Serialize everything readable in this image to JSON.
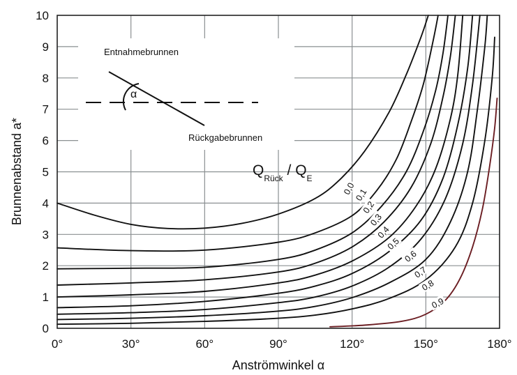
{
  "chart_data": {
    "type": "line",
    "xlabel": "Anströmwinkel α",
    "ylabel": "Brunnenabstand a*",
    "xlim": [
      0,
      180
    ],
    "ylim": [
      0,
      10
    ],
    "x_ticks": [
      "0°",
      "30°",
      "60°",
      "90°",
      "120°",
      "150°",
      "180°"
    ],
    "y_ticks": [
      "0",
      "1",
      "2",
      "3",
      "4",
      "5",
      "6",
      "7",
      "8",
      "9",
      "10"
    ],
    "grid": "major x and y",
    "legend_title": {
      "main": "Q",
      "sub1": "Rück",
      "sep": " / Q",
      "sub2": "E"
    },
    "inset": {
      "upper_label": "Entnahmebrunnen",
      "lower_label": "Rückgabebrunnen",
      "angle_symbol": "α"
    },
    "series": [
      {
        "name": "0,0",
        "points": [
          [
            0,
            4.0
          ],
          [
            15,
            3.62
          ],
          [
            30,
            3.32
          ],
          [
            45,
            3.19
          ],
          [
            60,
            3.2
          ],
          [
            75,
            3.35
          ],
          [
            90,
            3.65
          ],
          [
            105,
            4.15
          ],
          [
            115,
            4.75
          ],
          [
            125,
            5.65
          ],
          [
            135,
            6.9
          ],
          [
            142,
            8.1
          ],
          [
            148,
            9.3
          ],
          [
            151,
            10
          ]
        ]
      },
      {
        "name": "0,1",
        "points": [
          [
            0,
            2.57
          ],
          [
            30,
            2.48
          ],
          [
            60,
            2.5
          ],
          [
            90,
            2.75
          ],
          [
            105,
            3.05
          ],
          [
            120,
            3.6
          ],
          [
            130,
            4.4
          ],
          [
            138,
            5.4
          ],
          [
            144,
            6.6
          ],
          [
            149,
            7.8
          ],
          [
            153,
            9.2
          ],
          [
            155,
            10
          ]
        ]
      },
      {
        "name": "0,2",
        "points": [
          [
            0,
            1.9
          ],
          [
            30,
            1.92
          ],
          [
            60,
            1.95
          ],
          [
            90,
            2.2
          ],
          [
            105,
            2.5
          ],
          [
            120,
            3.05
          ],
          [
            132,
            3.9
          ],
          [
            142,
            5.0
          ],
          [
            149,
            6.3
          ],
          [
            154,
            7.6
          ],
          [
            157,
            8.8
          ],
          [
            159,
            10
          ]
        ]
      },
      {
        "name": "0,3",
        "points": [
          [
            0,
            1.38
          ],
          [
            30,
            1.45
          ],
          [
            60,
            1.55
          ],
          [
            90,
            1.8
          ],
          [
            105,
            2.08
          ],
          [
            120,
            2.6
          ],
          [
            133,
            3.4
          ],
          [
            144,
            4.5
          ],
          [
            152,
            5.9
          ],
          [
            157,
            7.4
          ],
          [
            160,
            8.7
          ],
          [
            162,
            10
          ]
        ]
      },
      {
        "name": "0,4",
        "points": [
          [
            0,
            1.0
          ],
          [
            30,
            1.07
          ],
          [
            60,
            1.18
          ],
          [
            90,
            1.45
          ],
          [
            105,
            1.7
          ],
          [
            120,
            2.15
          ],
          [
            135,
            2.9
          ],
          [
            146,
            3.9
          ],
          [
            154,
            5.1
          ],
          [
            160,
            6.7
          ],
          [
            163,
            8.1
          ],
          [
            165,
            10
          ]
        ]
      },
      {
        "name": "0,5",
        "points": [
          [
            0,
            0.66
          ],
          [
            30,
            0.72
          ],
          [
            60,
            0.86
          ],
          [
            90,
            1.12
          ],
          [
            105,
            1.35
          ],
          [
            120,
            1.75
          ],
          [
            135,
            2.45
          ],
          [
            148,
            3.45
          ],
          [
            157,
            4.8
          ],
          [
            163,
            6.5
          ],
          [
            167,
            8.3
          ],
          [
            169,
            10
          ]
        ]
      },
      {
        "name": "0,6",
        "points": [
          [
            0,
            0.45
          ],
          [
            30,
            0.5
          ],
          [
            60,
            0.6
          ],
          [
            90,
            0.82
          ],
          [
            105,
            1.0
          ],
          [
            120,
            1.35
          ],
          [
            135,
            1.95
          ],
          [
            148,
            2.85
          ],
          [
            158,
            4.15
          ],
          [
            165,
            5.9
          ],
          [
            169,
            7.8
          ],
          [
            172,
            10
          ]
        ]
      },
      {
        "name": "0,7",
        "points": [
          [
            0,
            0.28
          ],
          [
            30,
            0.32
          ],
          [
            60,
            0.4
          ],
          [
            90,
            0.55
          ],
          [
            105,
            0.7
          ],
          [
            120,
            0.98
          ],
          [
            135,
            1.45
          ],
          [
            150,
            2.2
          ],
          [
            160,
            3.4
          ],
          [
            167,
            5.0
          ],
          [
            171,
            7.0
          ],
          [
            174,
            9.0
          ],
          [
            175,
            10
          ]
        ]
      },
      {
        "name": "0,8",
        "points": [
          [
            0,
            0.13
          ],
          [
            30,
            0.16
          ],
          [
            60,
            0.22
          ],
          [
            90,
            0.32
          ],
          [
            105,
            0.42
          ],
          [
            120,
            0.62
          ],
          [
            135,
            0.95
          ],
          [
            150,
            1.55
          ],
          [
            162,
            2.6
          ],
          [
            169,
            4.0
          ],
          [
            174,
            6.0
          ],
          [
            177,
            8.0
          ],
          [
            178,
            9.3
          ]
        ]
      },
      {
        "name": "0,9",
        "color": "#6b1d22",
        "points": [
          [
            111,
            0.05
          ],
          [
            125,
            0.1
          ],
          [
            140,
            0.22
          ],
          [
            150,
            0.45
          ],
          [
            158,
            0.9
          ],
          [
            164,
            1.6
          ],
          [
            169,
            2.6
          ],
          [
            173,
            3.8
          ],
          [
            176,
            5.2
          ],
          [
            178,
            6.4
          ],
          [
            179,
            7.35
          ]
        ]
      }
    ]
  }
}
